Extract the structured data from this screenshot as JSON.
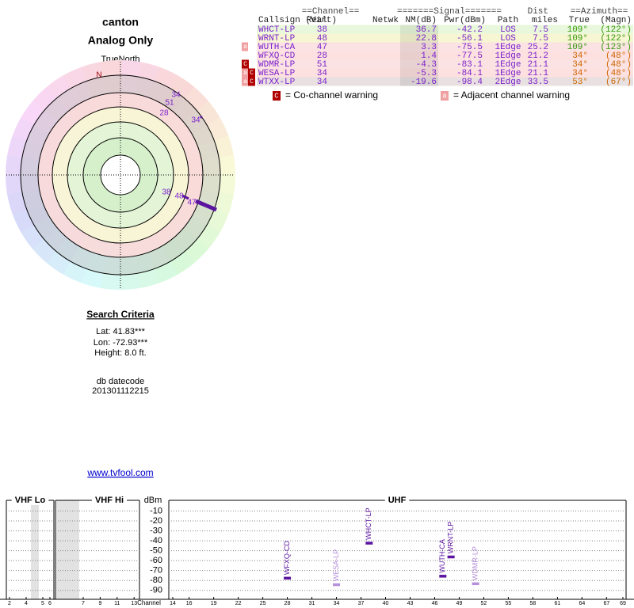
{
  "location": {
    "name": "canton",
    "subtitle": "Analog Only"
  },
  "polar": {
    "north_label": "TrueNorth",
    "north_mark": "N"
  },
  "search": {
    "title": "Search Criteria",
    "lat": "Lat: 41.83***",
    "lon": "Lon: -72.93***",
    "height": "Height: 8.0 ft.",
    "datecode_label": "db datecode",
    "datecode": "201301112215"
  },
  "link": "www.tvfool.com",
  "table": {
    "group_headers": [
      "==Channel==",
      "=======Signal=======",
      "Dist",
      "==Azimuth=="
    ],
    "headers": [
      "Callsign",
      "Real",
      "(Virt)",
      "Netwk",
      "NM(dB)",
      "Pwr(dBm)",
      "Path",
      "miles",
      "True",
      "(Magn)"
    ],
    "rows": [
      [
        "WHCT-LP",
        "38",
        "36.7",
        "-42.2",
        "LOS",
        "7.5",
        "109°",
        "(122°)"
      ],
      [
        "WRNT-LP",
        "48",
        "22.8",
        "-56.1",
        "LOS",
        "7.5",
        "109°",
        "(122°)"
      ],
      [
        "WUTH-CA",
        "47",
        "3.3",
        "-75.5",
        "1Edge",
        "25.2",
        "109°",
        "(123°)"
      ],
      [
        "WFXQ-CD",
        "28",
        "1.4",
        "-77.5",
        "1Edge",
        "21.2",
        "34°",
        "(48°)"
      ],
      [
        "WDMR-LP",
        "51",
        "-4.3",
        "-83.1",
        "1Edge",
        "21.1",
        "34°",
        "(48°)"
      ],
      [
        "WESA-LP",
        "34",
        "-5.3",
        "-84.1",
        "1Edge",
        "21.1",
        "34°",
        "(48°)"
      ],
      [
        "WTXX-LP",
        "34",
        "-19.6",
        "-98.4",
        "2Edge",
        "33.5",
        "53°",
        "(67°)"
      ]
    ],
    "warnings": [
      [],
      [],
      [
        "a"
      ],
      [],
      [
        "C"
      ],
      [
        "a",
        "C"
      ],
      [
        "a",
        "C"
      ]
    ],
    "legend": {
      "co_icon": "C",
      "co_text": "= Co-channel warning",
      "adj_icon": "a",
      "adj_text": "= Adjacent channel warning"
    }
  },
  "chart_data": {
    "type": "spectrum",
    "y_label": "dBm",
    "x_label": "Channel",
    "bands": [
      "VHF Lo",
      "VHF Hi",
      "UHF"
    ],
    "x": [
      28,
      34,
      38,
      47,
      48,
      51
    ],
    "values": [
      -77.5,
      -84.1,
      -42.2,
      -75.5,
      -56.1,
      -83.1
    ],
    "labels": [
      "WFXQ-CD",
      "WESA-LP",
      "WHCT-LP",
      "WUTH-CA",
      "WRNT-LP",
      "WDMR-LP"
    ],
    "colors": [
      "#5a14a0",
      "#b690da",
      "#5a14a0",
      "#5a14a0",
      "#5a14a0",
      "#b690da"
    ],
    "ylim": [
      -99,
      -4
    ],
    "yticks": [
      -10,
      -20,
      -30,
      -40,
      -50,
      -60,
      -70,
      -80,
      -90
    ],
    "xlim": [
      14,
      69
    ],
    "xticks": [
      14,
      16,
      19,
      22,
      25,
      28,
      31,
      34,
      37,
      40,
      43,
      46,
      49,
      52,
      55,
      58,
      61,
      64,
      67,
      69
    ],
    "vhf_xticks": [
      2,
      4,
      5,
      6,
      7,
      9,
      11,
      13
    ],
    "grid": true
  }
}
